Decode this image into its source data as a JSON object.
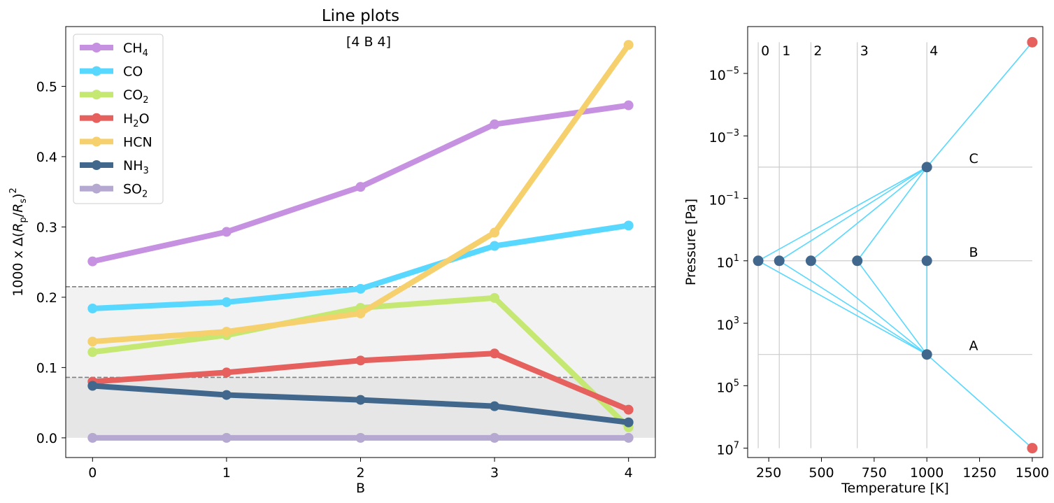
{
  "chart_data": [
    {
      "type": "line",
      "title": "Line plots",
      "annotation": "[4 B 4]",
      "xlabel": "B",
      "ylabel": "1000 x Δ(Rp/Rs)²",
      "x": [
        0,
        1,
        2,
        3,
        4
      ],
      "xlim": [
        -0.2,
        4.2
      ],
      "ylim": [
        -0.028,
        0.585
      ],
      "xticks": [
        "0",
        "1",
        "2",
        "3",
        "4"
      ],
      "yticks": [
        "0.0",
        "0.1",
        "0.2",
        "0.3",
        "0.4",
        "0.5"
      ],
      "ytick_values": [
        0.0,
        0.1,
        0.2,
        0.3,
        0.4,
        0.5
      ],
      "shaded_bands": [
        {
          "y0": 0.0,
          "y1": 0.086,
          "color": "#e6e6e6"
        },
        {
          "y0": 0.086,
          "y1": 0.215,
          "color": "#f2f2f2"
        }
      ],
      "dashed_lines": [
        0.086,
        0.215
      ],
      "legend_position": "top-left",
      "series": [
        {
          "name": "CH4",
          "label_main": "CH",
          "label_sub": "4",
          "label_tail": "",
          "color": "#c791e1",
          "values": [
            0.251,
            0.293,
            0.357,
            0.446,
            0.473
          ]
        },
        {
          "name": "CO",
          "label_main": "CO",
          "label_sub": "",
          "label_tail": "",
          "color": "#58d8ff",
          "values": [
            0.184,
            0.193,
            0.212,
            0.273,
            0.302
          ]
        },
        {
          "name": "CO2",
          "label_main": "CO",
          "label_sub": "2",
          "label_tail": "",
          "color": "#c4e872",
          "values": [
            0.122,
            0.146,
            0.185,
            0.199,
            0.015
          ]
        },
        {
          "name": "H2O",
          "label_main": "H",
          "label_sub": "2",
          "label_tail": "O",
          "color": "#e6605e",
          "values": [
            0.08,
            0.093,
            0.11,
            0.12,
            0.04
          ]
        },
        {
          "name": "HCN",
          "label_main": "HCN",
          "label_sub": "",
          "label_tail": "",
          "color": "#f5d06c",
          "values": [
            0.137,
            0.151,
            0.177,
            0.292,
            0.559
          ]
        },
        {
          "name": "NH3",
          "label_main": "NH",
          "label_sub": "3",
          "label_tail": "",
          "color": "#41688c",
          "values": [
            0.074,
            0.061,
            0.054,
            0.045,
            0.022
          ]
        },
        {
          "name": "SO2",
          "label_main": "SO",
          "label_sub": "2",
          "label_tail": "",
          "color": "#b5a8d1",
          "values": [
            0.0,
            0.0,
            0.0,
            0.0,
            0.0
          ]
        }
      ]
    },
    {
      "type": "line",
      "xlabel": "Temperature [K]",
      "ylabel": "Pressure [Pa]",
      "yscale": "log",
      "yinverted": true,
      "xlim": [
        150,
        1550
      ],
      "ylim_log": [
        -6.5,
        7.3
      ],
      "xticks": [
        "250",
        "500",
        "750",
        "1000",
        "1250",
        "1500"
      ],
      "xtick_values": [
        250,
        500,
        750,
        1000,
        1250,
        1500
      ],
      "yticks": [
        {
          "base": "10",
          "exp": "−5",
          "log": -5
        },
        {
          "base": "10",
          "exp": "−3",
          "log": -3
        },
        {
          "base": "10",
          "exp": "−1",
          "log": -1
        },
        {
          "base": "10",
          "exp": "1",
          "log": 1
        },
        {
          "base": "10",
          "exp": "3",
          "log": 3
        },
        {
          "base": "10",
          "exp": "5",
          "log": 5
        },
        {
          "base": "10",
          "exp": "7",
          "log": 7
        }
      ],
      "vertical_lines": [
        {
          "label": "0",
          "x": 200
        },
        {
          "label": "1",
          "x": 300
        },
        {
          "label": "2",
          "x": 450
        },
        {
          "label": "3",
          "x": 670
        },
        {
          "label": "4",
          "x": 1000
        }
      ],
      "horizontal_lines": [
        {
          "label": "C",
          "log": -2
        },
        {
          "label": "B",
          "log": 1
        },
        {
          "label": "A",
          "log": 4
        }
      ],
      "points": [
        {
          "T": 1000,
          "log": -2,
          "color": "#41688c"
        },
        {
          "T": 200,
          "log": 1,
          "color": "#41688c"
        },
        {
          "T": 300,
          "log": 1,
          "color": "#41688c"
        },
        {
          "T": 450,
          "log": 1,
          "color": "#41688c"
        },
        {
          "T": 670,
          "log": 1,
          "color": "#41688c"
        },
        {
          "T": 1000,
          "log": 1,
          "color": "#41688c"
        },
        {
          "T": 1000,
          "log": 4,
          "color": "#41688c"
        },
        {
          "T": 1500,
          "log": -6,
          "color": "#e6605e"
        },
        {
          "T": 1500,
          "log": 7,
          "color": "#e6605e"
        }
      ],
      "profile_color": "#58d8ff",
      "label_color": "#41688c"
    }
  ]
}
